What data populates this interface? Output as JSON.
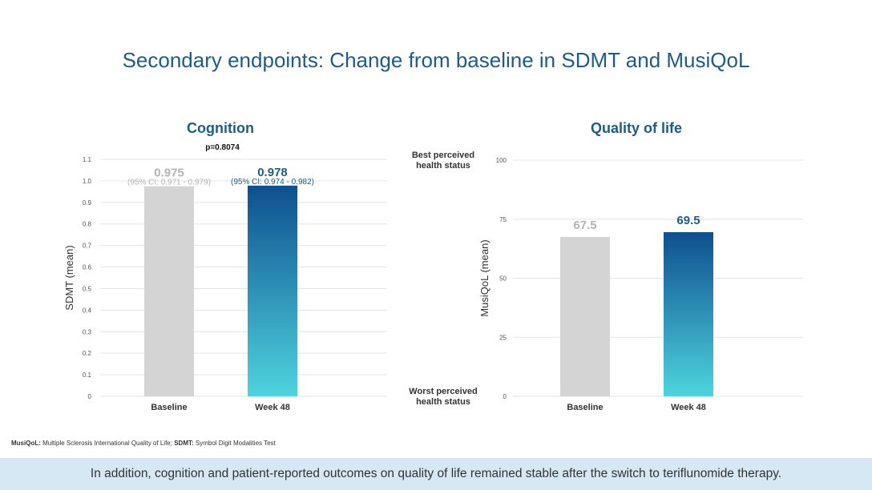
{
  "title": "Secondary endpoints: Change from baseline in SDMT and MusiQoL",
  "colors": {
    "title": "#1d5c8a",
    "baseline_bar": "#d4d4d4",
    "week48_top": "#0f4f8f",
    "week48_bottom": "#4ed4de",
    "baseline_label": "#b3b3b3",
    "week48_label": "#1d5c8a",
    "grid": "#e3e3e3",
    "banner_bg": "#d6e8f3"
  },
  "chart_data": [
    {
      "type": "bar",
      "title": "Cognition",
      "annotation": "p=0.8074",
      "ylabel": "SDMT (mean)",
      "ylim": [
        0,
        1.1
      ],
      "yticks": [
        "0",
        "0.1",
        "0.2",
        "0.3",
        "0.4",
        "0.5",
        "0.6",
        "0.7",
        "0.8",
        "0.9",
        "1.0",
        "1.1"
      ],
      "categories": [
        "Baseline",
        "Week 48"
      ],
      "values": [
        0.975,
        0.978
      ],
      "value_labels": [
        "0.975",
        "0.978"
      ],
      "ci_labels": [
        "(95% CI: 0.971 - 0.979)",
        "(95% CI: 0.974 - 0.982)"
      ]
    },
    {
      "type": "bar",
      "title": "Quality of life",
      "ylabel": "MusiQoL (mean)",
      "ylim": [
        0,
        100
      ],
      "yticks": [
        "0",
        "25",
        "50",
        "75",
        "100"
      ],
      "ytick_notes": {
        "top": "Best perceived health status",
        "bottom": "Worst perceived health status"
      },
      "categories": [
        "Baseline",
        "Week 48"
      ],
      "values": [
        67.5,
        69.5
      ],
      "value_labels": [
        "67.5",
        "69.5"
      ]
    }
  ],
  "footnote": {
    "term1": "MusiQoL:",
    "def1": " Multiple Sclerosis International Quality of Life; ",
    "term2": "SDMT:",
    "def2": " Symbol Digit Modalities Test"
  },
  "banner": "In addition, cognition and patient-reported outcomes on quality of life remained stable after the switch to teriflunomide therapy."
}
